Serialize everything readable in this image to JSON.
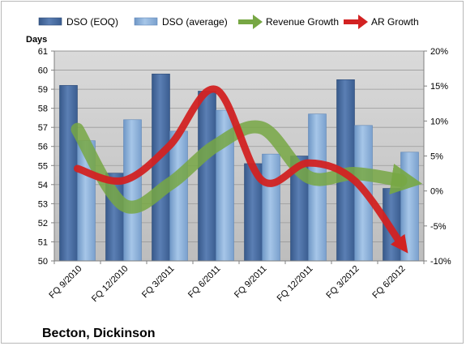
{
  "chart_data": {
    "type": "bar",
    "title": "Becton, Dickinson",
    "ylabel": "Days",
    "y2label": "",
    "categories": [
      "FQ 9/2010",
      "FQ 12/2010",
      "FQ 3/2011",
      "FQ 6/2011",
      "FQ 9/2011",
      "FQ 12/2011",
      "FQ 3/2012",
      "FQ 6/2012"
    ],
    "ylim": [
      50,
      61
    ],
    "yticks": [
      "50",
      "51",
      "52",
      "53",
      "54",
      "55",
      "56",
      "57",
      "58",
      "59",
      "60",
      "61"
    ],
    "y2lim": [
      -10,
      20
    ],
    "y2ticks": [
      "-10%",
      "-5%",
      "0%",
      "5%",
      "10%",
      "15%",
      "20%"
    ],
    "legend_position": "top",
    "grid": true,
    "series": [
      {
        "name": "DSO (EOQ)",
        "type": "bar",
        "axis": "left",
        "color": "#4a6fa5",
        "values": [
          59.2,
          54.6,
          59.8,
          58.9,
          55.1,
          55.5,
          59.5,
          53.8
        ]
      },
      {
        "name": "DSO (average)",
        "type": "bar",
        "axis": "left",
        "color": "#8fb4dc",
        "values": [
          56.3,
          57.4,
          56.8,
          57.9,
          55.6,
          57.7,
          57.1,
          55.7
        ]
      },
      {
        "name": "Revenue Growth",
        "type": "line",
        "axis": "right",
        "color": "#77a744",
        "values": [
          8.8,
          -2.0,
          1.0,
          6.5,
          9.0,
          2.0,
          2.5,
          1.5
        ]
      },
      {
        "name": "AR Growth",
        "type": "line",
        "axis": "right",
        "color": "#d22222",
        "values": [
          3.2,
          1.5,
          6.5,
          14.5,
          1.5,
          4.0,
          1.5,
          -7.5
        ]
      }
    ]
  }
}
